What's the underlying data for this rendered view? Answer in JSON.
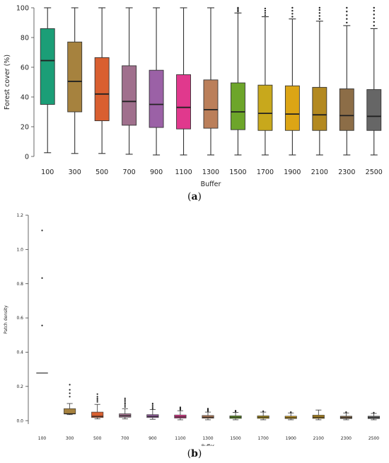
{
  "captions": [
    "(a)",
    "(b)"
  ],
  "chart_data": [
    {
      "type": "box",
      "caption_letter": "a",
      "xlabel": "Buffer",
      "ylabel": "Forest cover (%)",
      "ylim": [
        0,
        100
      ],
      "yticks": [
        0,
        20,
        40,
        60,
        80,
        100
      ],
      "categories": [
        "100",
        "300",
        "500",
        "700",
        "900",
        "1100",
        "1300",
        "1500",
        "1700",
        "1900",
        "2100",
        "2300",
        "2500"
      ],
      "colors": [
        "#1b9e77",
        "#a6823e",
        "#d95f30",
        "#a0708d",
        "#9b61a6",
        "#e0398d",
        "#bb7f5a",
        "#6da52a",
        "#c8a81c",
        "#dca515",
        "#b38920",
        "#8c6d47",
        "#666666"
      ],
      "boxes": [
        {
          "whisker_low": 2.5,
          "q1": 35,
          "median": 64.5,
          "q3": 86,
          "whisker_high": 100,
          "outliers": []
        },
        {
          "whisker_low": 2,
          "q1": 30,
          "median": 50.5,
          "q3": 77,
          "whisker_high": 100,
          "outliers": []
        },
        {
          "whisker_low": 2,
          "q1": 24,
          "median": 42,
          "q3": 66.5,
          "whisker_high": 100,
          "outliers": []
        },
        {
          "whisker_low": 1.5,
          "q1": 21,
          "median": 37,
          "q3": 61,
          "whisker_high": 100,
          "outliers": []
        },
        {
          "whisker_low": 1,
          "q1": 19.5,
          "median": 35,
          "q3": 58,
          "whisker_high": 100,
          "outliers": []
        },
        {
          "whisker_low": 1,
          "q1": 18.5,
          "median": 33,
          "q3": 55,
          "whisker_high": 100,
          "outliers": []
        },
        {
          "whisker_low": 1,
          "q1": 19,
          "median": 31.5,
          "q3": 51.5,
          "whisker_high": 100,
          "outliers": []
        },
        {
          "whisker_low": 1,
          "q1": 18,
          "median": 30,
          "q3": 49.5,
          "whisker_high": 96.5,
          "outliers": [
            97.5,
            98.5,
            99.5,
            100
          ]
        },
        {
          "whisker_low": 1,
          "q1": 17.5,
          "median": 29,
          "q3": 48,
          "whisker_high": 94,
          "outliers": [
            95,
            96.5,
            98,
            99.5
          ]
        },
        {
          "whisker_low": 1,
          "q1": 17.5,
          "median": 28.5,
          "q3": 47.5,
          "whisker_high": 92.5,
          "outliers": [
            94,
            96,
            98,
            100
          ]
        },
        {
          "whisker_low": 1,
          "q1": 17.5,
          "median": 28,
          "q3": 46.5,
          "whisker_high": 91,
          "outliers": [
            92.5,
            94.5,
            96.5,
            98.5,
            100
          ]
        },
        {
          "whisker_low": 1,
          "q1": 17.5,
          "median": 27.5,
          "q3": 45.5,
          "whisker_high": 88,
          "outliers": [
            90,
            92.5,
            95,
            97.5,
            100
          ]
        },
        {
          "whisker_low": 1,
          "q1": 17.5,
          "median": 27,
          "q3": 45,
          "whisker_high": 86,
          "outliers": [
            88,
            90.5,
            93,
            95.5,
            98,
            100
          ]
        }
      ]
    },
    {
      "type": "box",
      "caption_letter": "b",
      "xlabel": "Buffer",
      "ylabel": "Patch density",
      "ylim": [
        -0.02,
        1.2
      ],
      "yticks": [
        0.0,
        0.2,
        0.4,
        0.6,
        0.8,
        1.0,
        1.2
      ],
      "ytick_labels": [
        "0.0",
        "0.2",
        "0.4",
        "0.6",
        "0.8",
        "1.0",
        "1.2"
      ],
      "categories": [
        "100",
        "300",
        "500",
        "700",
        "900",
        "1100",
        "1300",
        "1500",
        "1700",
        "1900",
        "2100",
        "2300",
        "2500"
      ],
      "colors": [
        "#1b9e77",
        "#a6823e",
        "#d95f30",
        "#a0708d",
        "#9b61a6",
        "#e0398d",
        "#bb7f5a",
        "#6da52a",
        "#c8a81c",
        "#dca515",
        "#b38920",
        "#8c6d47",
        "#666666"
      ],
      "boxes": [
        {
          "whisker_low": 0.278,
          "q1": 0.278,
          "median": 0.278,
          "q3": 0.278,
          "whisker_high": 0.278,
          "outliers": [
            0.556,
            0.833,
            1.111
          ]
        },
        {
          "whisker_low": 0.035,
          "q1": 0.04,
          "median": 0.04,
          "q3": 0.07,
          "whisker_high": 0.1,
          "outliers": [
            0.14,
            0.16,
            0.18,
            0.21
          ]
        },
        {
          "whisker_low": 0.01,
          "q1": 0.018,
          "median": 0.025,
          "q3": 0.05,
          "whisker_high": 0.095,
          "outliers": [
            0.11,
            0.12,
            0.13,
            0.14,
            0.155
          ]
        },
        {
          "whisker_low": 0.01,
          "q1": 0.02,
          "median": 0.028,
          "q3": 0.04,
          "whisker_high": 0.07,
          "outliers": [
            0.08,
            0.09,
            0.1,
            0.11,
            0.12,
            0.13
          ]
        },
        {
          "whisker_low": 0.008,
          "q1": 0.018,
          "median": 0.025,
          "q3": 0.035,
          "whisker_high": 0.065,
          "outliers": [
            0.07,
            0.08,
            0.09,
            0.1
          ]
        },
        {
          "whisker_low": 0.005,
          "q1": 0.015,
          "median": 0.022,
          "q3": 0.033,
          "whisker_high": 0.058,
          "outliers": [
            0.063,
            0.068,
            0.073,
            0.078
          ]
        },
        {
          "whisker_low": 0.005,
          "q1": 0.014,
          "median": 0.02,
          "q3": 0.03,
          "whisker_high": 0.05,
          "outliers": [
            0.055,
            0.06,
            0.065,
            0.07
          ]
        },
        {
          "whisker_low": 0.005,
          "q1": 0.013,
          "median": 0.02,
          "q3": 0.028,
          "whisker_high": 0.048,
          "outliers": [
            0.053,
            0.058
          ]
        },
        {
          "whisker_low": 0.005,
          "q1": 0.013,
          "median": 0.02,
          "q3": 0.028,
          "whisker_high": 0.05,
          "outliers": [
            0.055
          ]
        },
        {
          "whisker_low": 0.005,
          "q1": 0.012,
          "median": 0.018,
          "q3": 0.026,
          "whisker_high": 0.045,
          "outliers": [
            0.05
          ]
        },
        {
          "whisker_low": 0.005,
          "q1": 0.013,
          "median": 0.02,
          "q3": 0.032,
          "whisker_high": 0.062,
          "outliers": []
        },
        {
          "whisker_low": 0.005,
          "q1": 0.012,
          "median": 0.018,
          "q3": 0.026,
          "whisker_high": 0.045,
          "outliers": [
            0.05
          ]
        },
        {
          "whisker_low": 0.005,
          "q1": 0.012,
          "median": 0.018,
          "q3": 0.026,
          "whisker_high": 0.042,
          "outliers": [
            0.047
          ]
        }
      ]
    }
  ]
}
